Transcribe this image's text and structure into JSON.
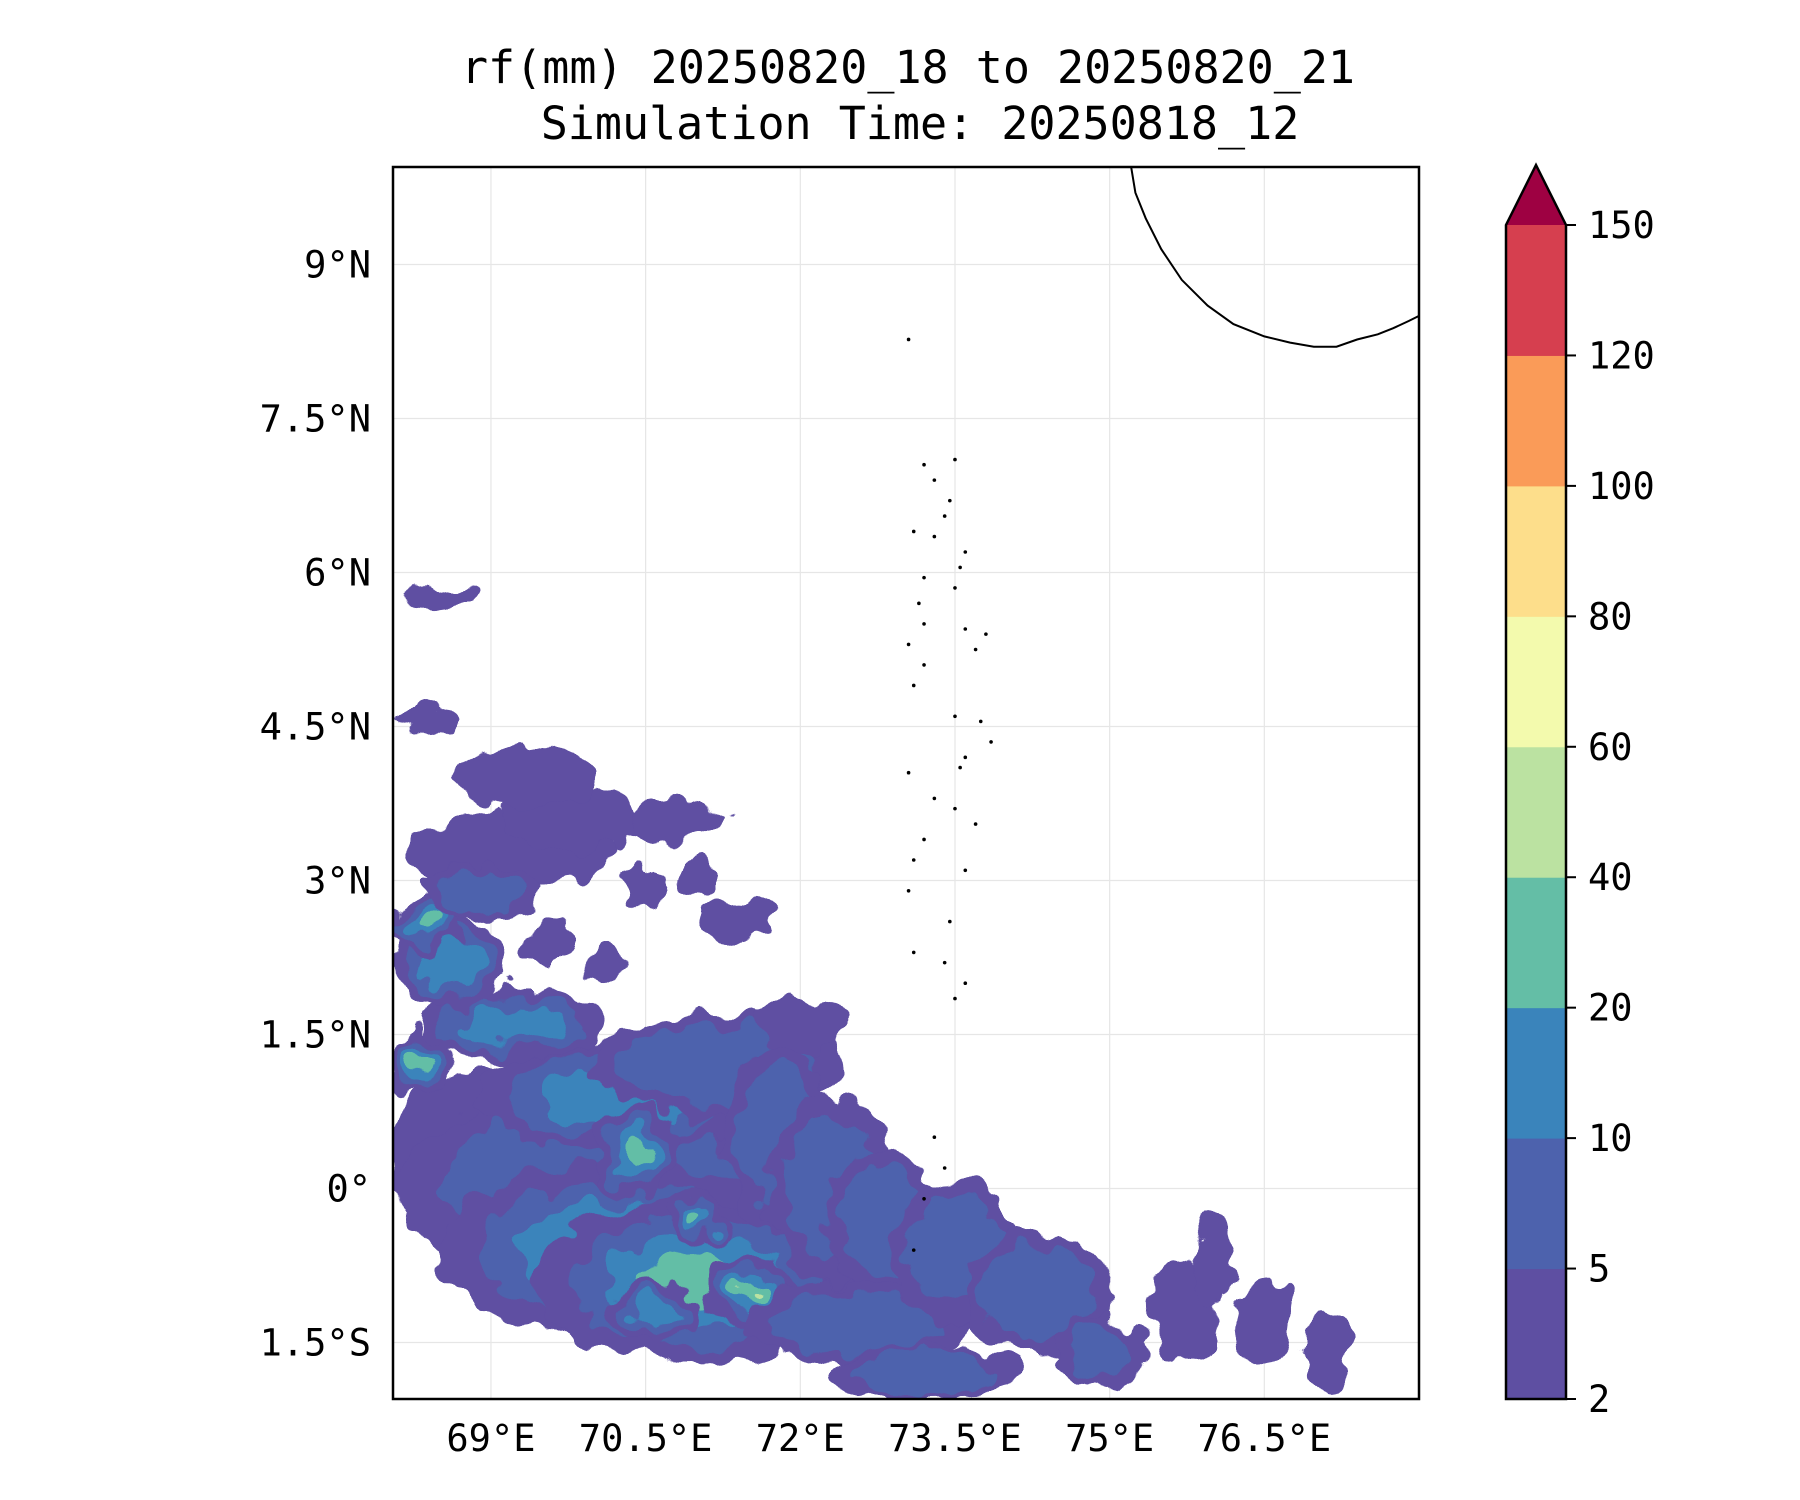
{
  "title": {
    "line1": "rf(mm) 20250820_18 to 20250820_21",
    "line2": "Simulation Time: 20250818_12"
  },
  "map": {
    "extent": {
      "lon_min": 68.05,
      "lon_max": 78.0,
      "lat_min": -2.05,
      "lat_max": 9.95
    },
    "x_ticks": [
      {
        "lon": 69.0,
        "label": "69°E"
      },
      {
        "lon": 70.5,
        "label": "70.5°E"
      },
      {
        "lon": 72.0,
        "label": "72°E"
      },
      {
        "lon": 73.5,
        "label": "73.5°E"
      },
      {
        "lon": 75.0,
        "label": "75°E"
      },
      {
        "lon": 76.5,
        "label": "76.5°E"
      }
    ],
    "y_ticks": [
      {
        "lat": 9.0,
        "label": "9°N"
      },
      {
        "lat": 7.5,
        "label": "7.5°N"
      },
      {
        "lat": 6.0,
        "label": "6°N"
      },
      {
        "lat": 4.5,
        "label": "4.5°N"
      },
      {
        "lat": 3.0,
        "label": "3°N"
      },
      {
        "lat": 1.5,
        "label": "1.5°N"
      },
      {
        "lat": 0.0,
        "label": "0°"
      },
      {
        "lat": -1.5,
        "label": "1.5°S"
      }
    ],
    "gridlines": true,
    "coastline": [
      [
        75.2,
        10.0
      ],
      [
        75.25,
        9.7
      ],
      [
        75.35,
        9.45
      ],
      [
        75.5,
        9.15
      ],
      [
        75.7,
        8.85
      ],
      [
        75.95,
        8.6
      ],
      [
        76.2,
        8.42
      ],
      [
        76.5,
        8.3
      ],
      [
        76.75,
        8.24
      ],
      [
        76.98,
        8.2
      ],
      [
        77.2,
        8.2
      ],
      [
        77.4,
        8.27
      ],
      [
        77.6,
        8.32
      ],
      [
        77.75,
        8.38
      ],
      [
        77.9,
        8.45
      ],
      [
        78.0,
        8.5
      ]
    ],
    "islands": [
      [
        73.05,
        8.27
      ],
      [
        73.5,
        7.1
      ],
      [
        73.2,
        7.05
      ],
      [
        73.3,
        6.9
      ],
      [
        73.45,
        6.7
      ],
      [
        73.4,
        6.55
      ],
      [
        73.1,
        6.4
      ],
      [
        73.3,
        6.35
      ],
      [
        73.6,
        6.2
      ],
      [
        73.55,
        6.05
      ],
      [
        73.2,
        5.95
      ],
      [
        73.5,
        5.85
      ],
      [
        73.15,
        5.7
      ],
      [
        73.2,
        5.5
      ],
      [
        73.05,
        5.3
      ],
      [
        73.6,
        5.45
      ],
      [
        73.8,
        5.4
      ],
      [
        73.7,
        5.25
      ],
      [
        73.2,
        5.1
      ],
      [
        73.1,
        4.9
      ],
      [
        73.5,
        4.6
      ],
      [
        73.75,
        4.55
      ],
      [
        73.85,
        4.35
      ],
      [
        73.6,
        4.2
      ],
      [
        73.55,
        4.1
      ],
      [
        73.05,
        4.05
      ],
      [
        73.3,
        3.8
      ],
      [
        73.5,
        3.7
      ],
      [
        73.7,
        3.55
      ],
      [
        73.2,
        3.4
      ],
      [
        73.1,
        3.2
      ],
      [
        73.6,
        3.1
      ],
      [
        73.05,
        2.9
      ],
      [
        73.45,
        2.6
      ],
      [
        73.1,
        2.3
      ],
      [
        73.4,
        2.2
      ],
      [
        73.6,
        2.0
      ],
      [
        73.5,
        1.85
      ],
      [
        73.3,
        0.5
      ],
      [
        73.4,
        0.2
      ],
      [
        73.2,
        -0.1
      ],
      [
        73.1,
        -0.6
      ]
    ],
    "outline_color": "#000000"
  },
  "rain_cells": [
    {
      "lon": 69.3,
      "lat": 0.3,
      "rx": 1.3,
      "ry": 0.9,
      "level": 1
    },
    {
      "lon": 70.0,
      "lat": 0.0,
      "rx": 1.9,
      "ry": 1.0,
      "level": 2
    },
    {
      "lon": 70.2,
      "lat": -0.6,
      "rx": 1.7,
      "ry": 0.85,
      "level": 3
    },
    {
      "lon": 71.0,
      "lat": -0.9,
      "rx": 1.6,
      "ry": 0.8,
      "level": 4
    },
    {
      "lon": 71.5,
      "lat": -1.0,
      "rx": 0.45,
      "ry": 0.35,
      "level": 5
    },
    {
      "lon": 70.2,
      "lat": 0.9,
      "rx": 1.35,
      "ry": 0.55,
      "level": 3
    },
    {
      "lon": 70.4,
      "lat": 0.35,
      "rx": 0.4,
      "ry": 0.45,
      "level": 4
    },
    {
      "lon": 69.2,
      "lat": 1.6,
      "rx": 0.9,
      "ry": 0.35,
      "level": 3
    },
    {
      "lon": 68.6,
      "lat": 2.2,
      "rx": 0.55,
      "ry": 0.45,
      "level": 3
    },
    {
      "lon": 68.4,
      "lat": 2.6,
      "rx": 0.3,
      "ry": 0.3,
      "level": 4
    },
    {
      "lon": 68.3,
      "lat": 1.2,
      "rx": 0.35,
      "ry": 0.3,
      "level": 4
    },
    {
      "lon": 71.2,
      "lat": 1.2,
      "rx": 1.2,
      "ry": 0.5,
      "level": 2
    },
    {
      "lon": 71.8,
      "lat": 0.5,
      "rx": 0.55,
      "ry": 0.9,
      "level": 2
    },
    {
      "lon": 72.3,
      "lat": 0.0,
      "rx": 0.6,
      "ry": 0.9,
      "level": 2
    },
    {
      "lon": 72.8,
      "lat": -0.3,
      "rx": 0.55,
      "ry": 0.7,
      "level": 2
    },
    {
      "lon": 71.0,
      "lat": -0.3,
      "rx": 0.3,
      "ry": 0.25,
      "level": 4
    },
    {
      "lon": 70.6,
      "lat": -1.2,
      "rx": 0.45,
      "ry": 0.3,
      "level": 3
    },
    {
      "lon": 72.6,
      "lat": -1.3,
      "rx": 1.1,
      "ry": 0.4,
      "level": 2
    },
    {
      "lon": 73.5,
      "lat": -0.6,
      "rx": 0.6,
      "ry": 0.7,
      "level": 2
    },
    {
      "lon": 74.3,
      "lat": -1.0,
      "rx": 0.7,
      "ry": 0.6,
      "level": 2
    },
    {
      "lon": 74.9,
      "lat": -1.6,
      "rx": 0.45,
      "ry": 0.35,
      "level": 2
    },
    {
      "lon": 75.7,
      "lat": -1.2,
      "rx": 0.35,
      "ry": 0.5,
      "level": 1
    },
    {
      "lon": 76.5,
      "lat": -1.3,
      "rx": 0.3,
      "ry": 0.45,
      "level": 1
    },
    {
      "lon": 77.1,
      "lat": -1.6,
      "rx": 0.25,
      "ry": 0.4,
      "level": 1
    },
    {
      "lon": 73.2,
      "lat": -1.8,
      "rx": 0.9,
      "ry": 0.25,
      "level": 2
    },
    {
      "lon": 69.2,
      "lat": 3.3,
      "rx": 1.0,
      "ry": 0.35,
      "level": 1
    },
    {
      "lon": 68.9,
      "lat": 2.9,
      "rx": 0.6,
      "ry": 0.3,
      "level": 2
    },
    {
      "lon": 69.8,
      "lat": 3.6,
      "rx": 0.7,
      "ry": 0.3,
      "level": 1
    },
    {
      "lon": 69.3,
      "lat": 4.0,
      "rx": 0.7,
      "ry": 0.3,
      "level": 1
    },
    {
      "lon": 68.4,
      "lat": 4.55,
      "rx": 0.3,
      "ry": 0.15,
      "level": 1
    },
    {
      "lon": 68.5,
      "lat": 5.75,
      "rx": 0.3,
      "ry": 0.15,
      "level": 1
    },
    {
      "lon": 70.8,
      "lat": 3.6,
      "rx": 0.45,
      "ry": 0.2,
      "level": 1
    },
    {
      "lon": 71.4,
      "lat": 2.6,
      "rx": 0.35,
      "ry": 0.2,
      "level": 1
    },
    {
      "lon": 72.0,
      "lat": 1.6,
      "rx": 0.45,
      "ry": 0.25,
      "level": 1
    },
    {
      "lon": 70.5,
      "lat": 2.9,
      "rx": 0.2,
      "ry": 0.2,
      "level": 1
    },
    {
      "lon": 71.0,
      "lat": 3.0,
      "rx": 0.2,
      "ry": 0.2,
      "level": 1
    },
    {
      "lon": 69.6,
      "lat": 2.4,
      "rx": 0.25,
      "ry": 0.2,
      "level": 1
    },
    {
      "lon": 70.1,
      "lat": 2.2,
      "rx": 0.2,
      "ry": 0.18,
      "level": 1
    },
    {
      "lon": 76.0,
      "lat": -0.7,
      "rx": 0.2,
      "ry": 0.45,
      "level": 1
    }
  ],
  "colorbar": {
    "bounds": [
      2,
      5,
      10,
      20,
      40,
      60,
      80,
      100,
      120,
      150
    ],
    "labels": [
      "2",
      "5",
      "10",
      "20",
      "40",
      "60",
      "80",
      "100",
      "120",
      "150"
    ],
    "colors": [
      "#5e4fa2",
      "#4d62ad",
      "#3a84bb",
      "#64bea6",
      "#bbe2a1",
      "#f3faad",
      "#fdde8b",
      "#fa9b58",
      "#d63f4f"
    ],
    "extend_color": "#9e0142",
    "extend": "max"
  }
}
